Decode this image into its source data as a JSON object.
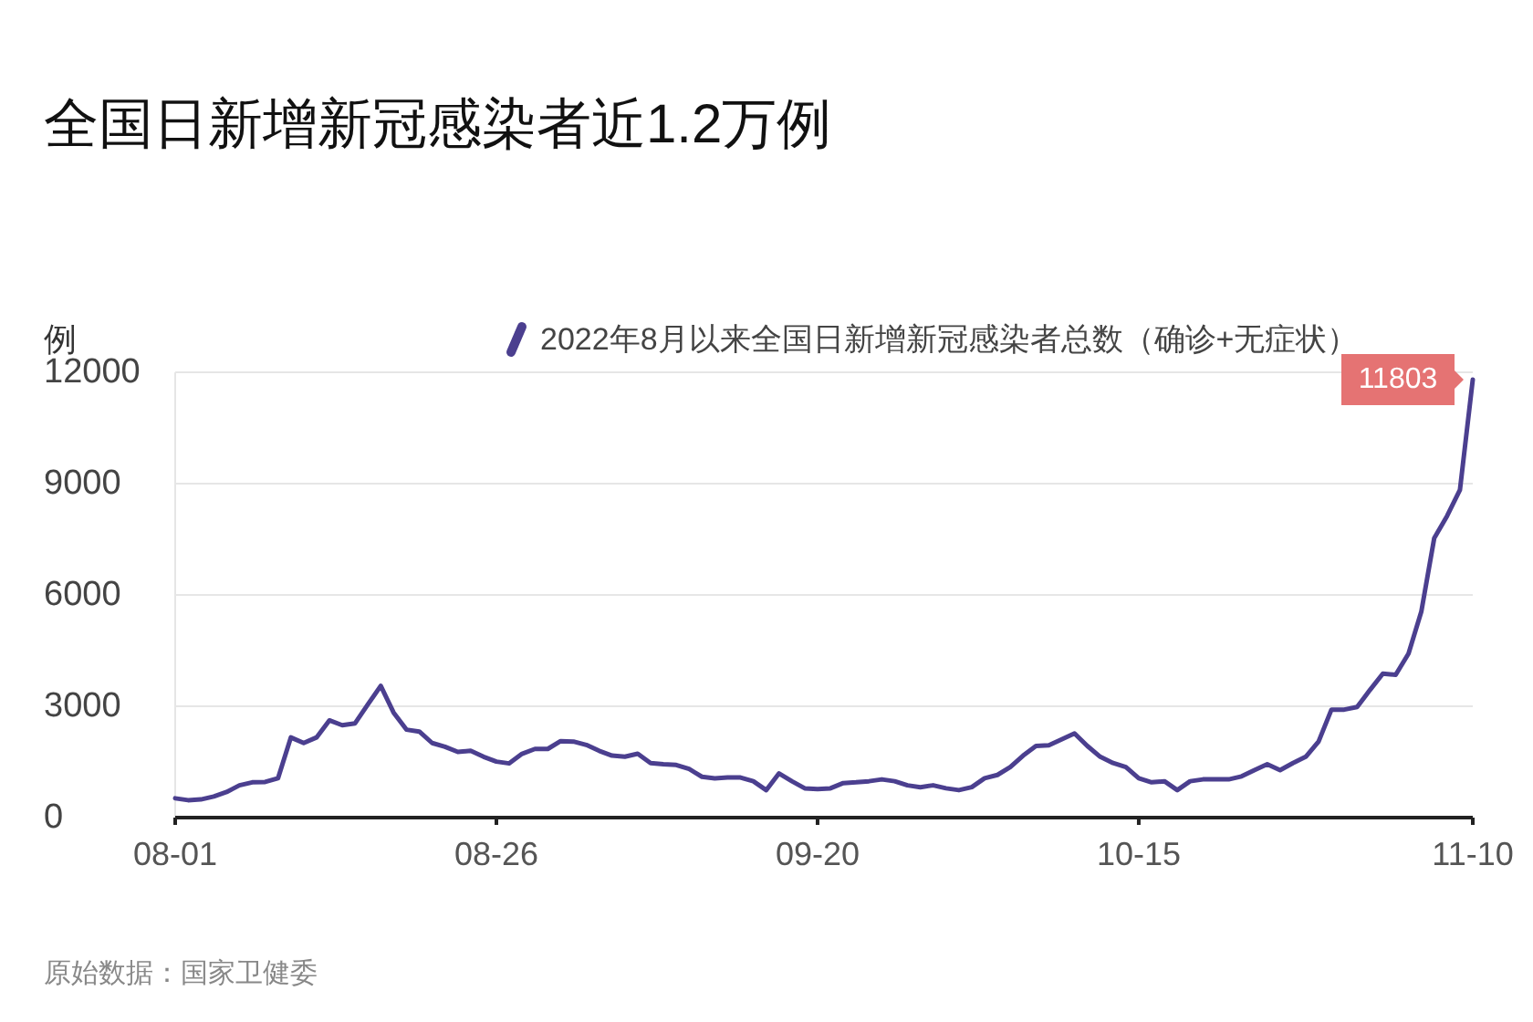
{
  "chart_data": {
    "type": "line",
    "title": "全国日新增新冠感染者近1.2万例",
    "ylabel": "例",
    "x": [
      "2022-08-01",
      "2022-08-02",
      "2022-08-03",
      "2022-08-04",
      "2022-08-05",
      "2022-08-06",
      "2022-08-07",
      "2022-08-08",
      "2022-08-09",
      "2022-08-10",
      "2022-08-11",
      "2022-08-12",
      "2022-08-13",
      "2022-08-14",
      "2022-08-15",
      "2022-08-16",
      "2022-08-17",
      "2022-08-18",
      "2022-08-19",
      "2022-08-20",
      "2022-08-21",
      "2022-08-22",
      "2022-08-23",
      "2022-08-24",
      "2022-08-25",
      "2022-08-26",
      "2022-08-27",
      "2022-08-28",
      "2022-08-29",
      "2022-08-30",
      "2022-08-31",
      "2022-09-01",
      "2022-09-02",
      "2022-09-03",
      "2022-09-04",
      "2022-09-05",
      "2022-09-06",
      "2022-09-07",
      "2022-09-08",
      "2022-09-09",
      "2022-09-10",
      "2022-09-11",
      "2022-09-12",
      "2022-09-13",
      "2022-09-14",
      "2022-09-15",
      "2022-09-16",
      "2022-09-17",
      "2022-09-18",
      "2022-09-19",
      "2022-09-20",
      "2022-09-21",
      "2022-09-22",
      "2022-09-23",
      "2022-09-24",
      "2022-09-25",
      "2022-09-26",
      "2022-09-27",
      "2022-09-28",
      "2022-09-29",
      "2022-09-30",
      "2022-10-01",
      "2022-10-02",
      "2022-10-03",
      "2022-10-04",
      "2022-10-05",
      "2022-10-06",
      "2022-10-07",
      "2022-10-08",
      "2022-10-09",
      "2022-10-10",
      "2022-10-11",
      "2022-10-12",
      "2022-10-13",
      "2022-10-14",
      "2022-10-15",
      "2022-10-16",
      "2022-10-17",
      "2022-10-18",
      "2022-10-19",
      "2022-10-20",
      "2022-10-21",
      "2022-10-22",
      "2022-10-23",
      "2022-10-24",
      "2022-10-25",
      "2022-10-26",
      "2022-10-27",
      "2022-10-28",
      "2022-10-29",
      "2022-10-30",
      "2022-10-31",
      "2022-11-01",
      "2022-11-02",
      "2022-11-03",
      "2022-11-04",
      "2022-11-05",
      "2022-11-06",
      "2022-11-07",
      "2022-11-08",
      "2022-11-09",
      "2022-11-10"
    ],
    "series": [
      {
        "name": "2022年8月以来全国日新增新冠感染者总数（确诊+无症状）",
        "color": "#4b3f8f",
        "values": [
          520,
          470,
          490,
          570,
          690,
          870,
          950,
          960,
          1060,
          2160,
          2010,
          2160,
          2620,
          2490,
          2540,
          3050,
          3550,
          2830,
          2370,
          2320,
          2010,
          1910,
          1770,
          1800,
          1640,
          1510,
          1460,
          1720,
          1850,
          1850,
          2060,
          2050,
          1960,
          1800,
          1670,
          1640,
          1720,
          1470,
          1440,
          1420,
          1310,
          1100,
          1060,
          1080,
          1080,
          980,
          740,
          1190,
          980,
          790,
          770,
          790,
          930,
          950,
          980,
          1030,
          980,
          870,
          820,
          870,
          790,
          740,
          820,
          1060,
          1150,
          1360,
          1670,
          1930,
          1950,
          2110,
          2270,
          1930,
          1640,
          1470,
          1360,
          1060,
          950,
          980,
          740,
          980,
          1030,
          1030,
          1030,
          1110,
          1280,
          1440,
          1280,
          1470,
          1640,
          2050,
          2910,
          2910,
          2980,
          3440,
          3880,
          3850,
          4420,
          5560,
          7530,
          8130,
          8830,
          11803
        ]
      }
    ],
    "xlim": [
      "2022-08-01",
      "2022-11-10"
    ],
    "xticks": [
      {
        "value": "2022-08-01",
        "label": "08-01"
      },
      {
        "value": "2022-08-26",
        "label": "08-26"
      },
      {
        "value": "2022-09-20",
        "label": "09-20"
      },
      {
        "value": "2022-10-15",
        "label": "10-15"
      },
      {
        "value": "2022-11-10",
        "label": "11-10"
      }
    ],
    "ylim": [
      0,
      12000
    ],
    "yticks": [
      0,
      3000,
      6000,
      9000,
      12000
    ],
    "grid": "y",
    "legend": "top",
    "marker": "none",
    "line_style": "solid",
    "annotations": [
      {
        "text": "11803",
        "x": "2022-11-10",
        "y": 11803
      },
      "原始数据：国家卫健委"
    ]
  }
}
